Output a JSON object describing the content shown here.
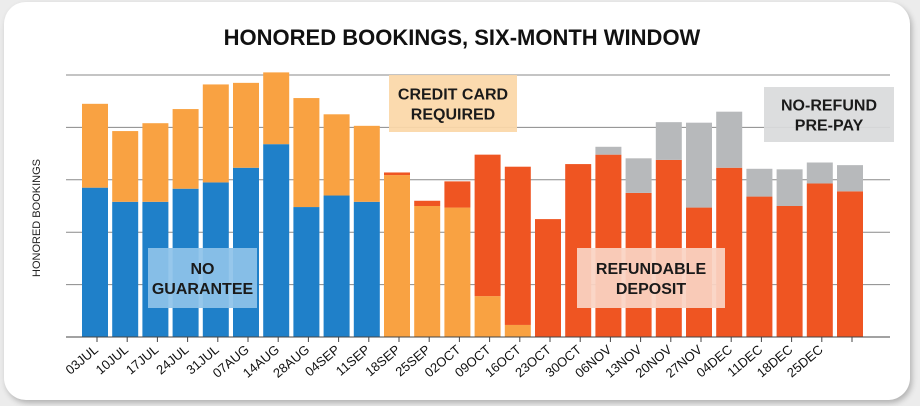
{
  "chart_data": {
    "type": "bar",
    "stacked": true,
    "title": "HONORED BOOKINGS, SIX-MONTH WINDOW",
    "xlabel": "",
    "ylabel": "HONORED BOOKINGS",
    "ylim": [
      0,
      5.3
    ],
    "gridlines": [
      1,
      2,
      3,
      4,
      5
    ],
    "y_tick_labels": false,
    "categories": [
      "03JUL",
      "10JUL",
      "17JUL",
      "24JUL",
      "31JUL",
      "07AUG",
      "14AUG",
      "28AUG",
      "04SEP",
      "11SEP",
      "18SEP",
      "25SEP",
      "02OCT",
      "09OCT",
      "16OCT",
      "23OCT",
      "30OCT",
      "06NOV",
      "13NOV",
      "20NOV",
      "27NOV",
      "04DEC",
      "11DEC",
      "18DEC",
      "25DEC",
      ""
    ],
    "series": [
      {
        "key": "blue",
        "color": "#1f80c9",
        "values": [
          2.85,
          2.58,
          2.58,
          2.83,
          2.95,
          3.23,
          3.68,
          2.48,
          2.7,
          2.58,
          0,
          0,
          0,
          0,
          0,
          0,
          0,
          0,
          0,
          0,
          0,
          0,
          0,
          0,
          0,
          0
        ]
      },
      {
        "key": "orange",
        "color": "#f9a242",
        "values": [
          1.6,
          1.35,
          1.5,
          1.52,
          1.87,
          1.62,
          1.37,
          2.08,
          1.55,
          1.45,
          3.09,
          2.5,
          2.47,
          0.78,
          0.23,
          0,
          0,
          0,
          0,
          0,
          0,
          0,
          0,
          0,
          0,
          0
        ]
      },
      {
        "key": "red",
        "color": "#ef5522",
        "values": [
          0,
          0,
          0,
          0,
          0,
          0,
          0,
          0,
          0,
          0,
          0.05,
          0.1,
          0.5,
          2.7,
          3.02,
          2.25,
          3.3,
          3.48,
          2.75,
          3.38,
          2.47,
          3.23,
          2.68,
          2.5,
          2.93,
          2.78
        ]
      },
      {
        "key": "gray",
        "color": "#b7b9bb",
        "values": [
          0,
          0,
          0,
          0,
          0,
          0,
          0,
          0,
          0,
          0,
          0,
          0,
          0,
          0,
          0,
          0,
          0,
          0.15,
          0.66,
          0.72,
          1.62,
          1.07,
          0.53,
          0.7,
          0.4,
          0.5
        ]
      }
    ],
    "annotations": [
      {
        "line1": "NO",
        "line2": "GUARANTEE",
        "bg": "#8ec3ea"
      },
      {
        "line1": "CREDIT CARD",
        "line2": "REQUIRED",
        "bg": "#fbd7a8"
      },
      {
        "line1": "REFUNDABLE",
        "line2": "DEPOSIT",
        "bg": "#fad3c3"
      },
      {
        "line1": "NO-REFUND",
        "line2": "PRE-PAY",
        "bg": "#d9dadb"
      }
    ]
  }
}
